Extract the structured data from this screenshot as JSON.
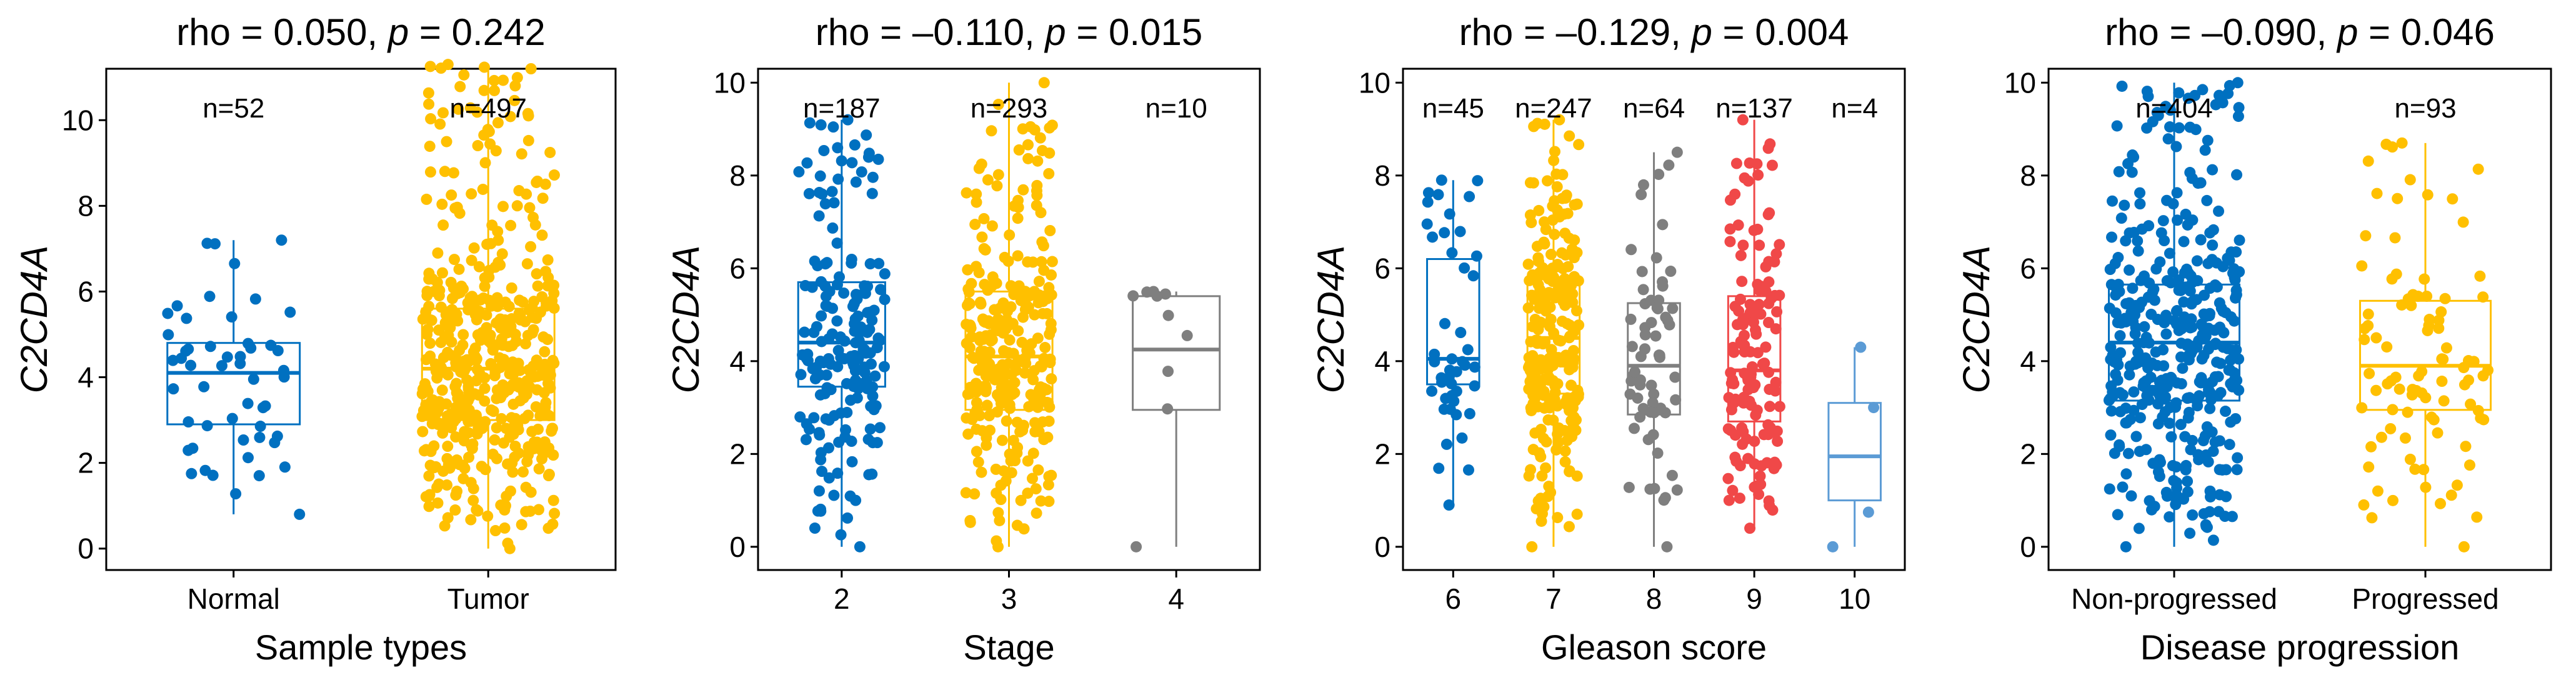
{
  "chart_data": [
    {
      "type": "box",
      "title_prefix": "rho = 0.050, ",
      "title_p": "p",
      "title_suffix": " = 0.242",
      "xlabel": "Sample types",
      "ylabel": "C2CD4A",
      "ylim": [
        -0.5,
        11.2
      ],
      "yticks": [
        "0",
        "2",
        "4",
        "6",
        "8",
        "10"
      ],
      "categories": [
        "Normal",
        "Tumor"
      ],
      "n_labels": [
        "n=52",
        "n=497"
      ],
      "colors": [
        "#0070C0",
        "#FFC000"
      ],
      "boxes": [
        {
          "q1": 2.9,
          "median": 4.1,
          "q3": 4.8,
          "lower": 0.8,
          "upper": 7.2,
          "n": 52
        },
        {
          "q1": 3.0,
          "median": 4.2,
          "q3": 5.6,
          "lower": 0.0,
          "upper": 11.3,
          "n": 497
        }
      ]
    },
    {
      "type": "box",
      "title_prefix": "rho = –0.110, ",
      "title_p": "p",
      "title_suffix": " = 0.015",
      "xlabel": "Stage",
      "ylabel": "C2CD4A",
      "ylim": [
        -0.5,
        10.3
      ],
      "yticks": [
        "0",
        "2",
        "4",
        "6",
        "8",
        "10"
      ],
      "categories": [
        "2",
        "3",
        "4"
      ],
      "n_labels": [
        "n=187",
        "n=293",
        "n=10"
      ],
      "colors": [
        "#0070C0",
        "#FFC000",
        "#7F7F7F"
      ],
      "boxes": [
        {
          "q1": 3.45,
          "median": 4.4,
          "q3": 5.7,
          "lower": 0.0,
          "upper": 9.2,
          "n": 187
        },
        {
          "q1": 2.95,
          "median": 4.1,
          "q3": 5.5,
          "lower": 0.0,
          "upper": 10.0,
          "n": 293
        },
        {
          "q1": 2.95,
          "median": 4.25,
          "q3": 5.4,
          "lower": 0.0,
          "upper": 5.5,
          "n": 10
        }
      ]
    },
    {
      "type": "box",
      "title_prefix": "rho = –0.129, ",
      "title_p": "p",
      "title_suffix": " = 0.004",
      "xlabel": "Gleason score",
      "ylabel": "C2CD4A",
      "ylim": [
        -0.5,
        10.3
      ],
      "yticks": [
        "0",
        "2",
        "4",
        "6",
        "8",
        "10"
      ],
      "categories": [
        "6",
        "7",
        "8",
        "9",
        "10"
      ],
      "n_labels": [
        "n=45",
        "n=247",
        "n=64",
        "n=137",
        "n=4"
      ],
      "colors": [
        "#0070C0",
        "#FFC000",
        "#7F7F7F",
        "#F04848",
        "#5B9BD5"
      ],
      "boxes": [
        {
          "q1": 3.5,
          "median": 4.05,
          "q3": 6.2,
          "lower": 0.9,
          "upper": 7.9,
          "n": 45
        },
        {
          "q1": 3.3,
          "median": 4.5,
          "q3": 5.8,
          "lower": 0.0,
          "upper": 9.2,
          "n": 247
        },
        {
          "q1": 2.85,
          "median": 3.9,
          "q3": 5.25,
          "lower": 0.0,
          "upper": 8.5,
          "n": 64
        },
        {
          "q1": 2.7,
          "median": 3.8,
          "q3": 5.4,
          "lower": 0.4,
          "upper": 9.2,
          "n": 137
        },
        {
          "q1": 1.0,
          "median": 1.95,
          "q3": 3.1,
          "lower": 0.0,
          "upper": 4.3,
          "n": 4
        }
      ]
    },
    {
      "type": "box",
      "title_prefix": "rho = –0.090, ",
      "title_p": "p",
      "title_suffix": " = 0.046",
      "xlabel": "Disease progression",
      "ylabel": "C2CD4A",
      "ylim": [
        -0.5,
        10.3
      ],
      "yticks": [
        "0",
        "2",
        "4",
        "6",
        "8",
        "10"
      ],
      "categories": [
        "Non-progressed",
        "Progressed"
      ],
      "n_labels": [
        "n=404",
        "n=93"
      ],
      "colors": [
        "#0070C0",
        "#FFC000"
      ],
      "boxes": [
        {
          "q1": 3.15,
          "median": 4.4,
          "q3": 5.65,
          "lower": 0.0,
          "upper": 10.0,
          "n": 404
        },
        {
          "q1": 2.95,
          "median": 3.9,
          "q3": 5.3,
          "lower": 0.0,
          "upper": 8.7,
          "n": 93
        }
      ]
    }
  ]
}
